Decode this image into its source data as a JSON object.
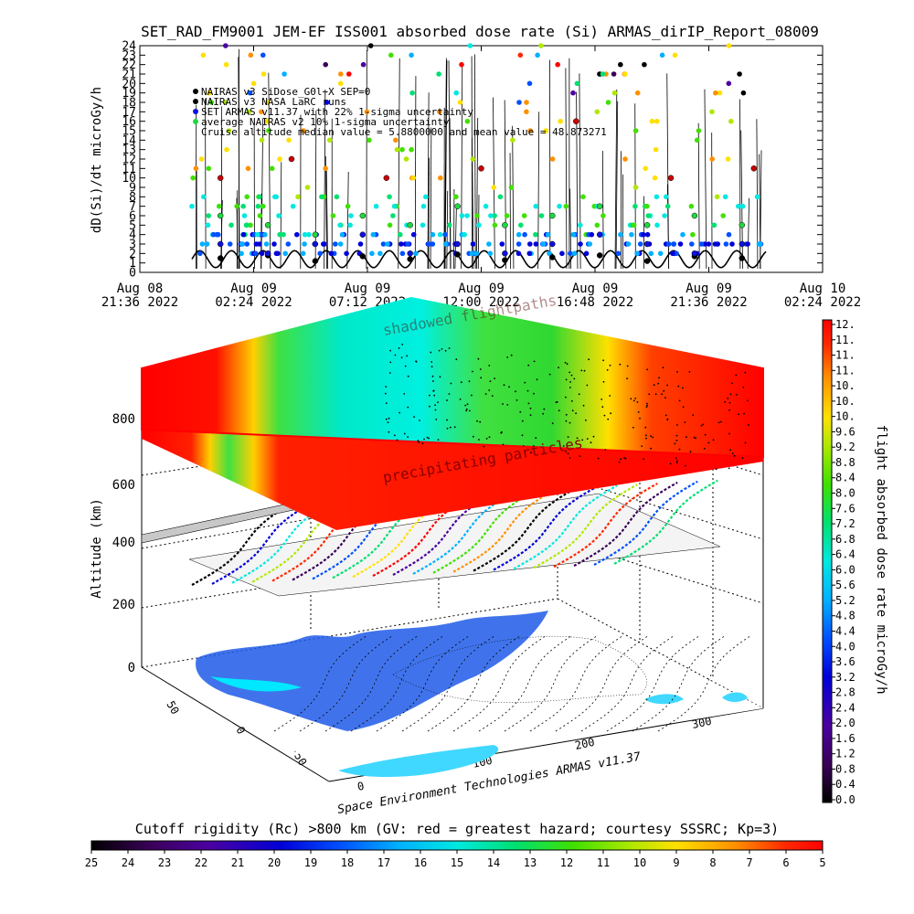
{
  "title": "SET_RAD_FM9001  JEM-EF ISS001 absorbed dose rate (Si) ARMAS_dirIP_Report_08009",
  "top_panel": {
    "ylabel": "dD(Si)/dt microGy/h",
    "ylim": [
      0,
      24
    ],
    "y_ticks": [
      "0",
      "1",
      "2",
      "3",
      "4",
      "5",
      "6",
      "7",
      "8",
      "9",
      "10",
      "11",
      "12",
      "13",
      "14",
      "15",
      "16",
      "17",
      "18",
      "19",
      "20",
      "21",
      "22",
      "23",
      "24"
    ],
    "x_ticks": [
      {
        "date": "Aug 08",
        "time": "21:36 2022"
      },
      {
        "date": "Aug 09",
        "time": "02:24 2022"
      },
      {
        "date": "Aug 09",
        "time": "07:12 2022"
      },
      {
        "date": "Aug 09",
        "time": "12:00 2022"
      },
      {
        "date": "Aug 09",
        "time": "16:48 2022"
      },
      {
        "date": "Aug 09",
        "time": "21:36 2022"
      },
      {
        "date": "Aug 10",
        "time": "02:24 2022"
      }
    ],
    "legend": [
      "NAIRAS v3 SiDose_G0l+X SEP=0",
      "NAIRAS v3 NASA LaRC runs",
      "SET ARMAS v11.37 with 22% 1-sigma uncertainty",
      "average NAIRAS v2 10% 1-sigma uncertainty",
      "Cruise altitude median value = 5.8800000 and mean value = 48.873271"
    ]
  },
  "scene3d": {
    "ylabel": "Altitude (km)",
    "alt_ticks": [
      "0",
      "200",
      "400",
      "600",
      "800"
    ],
    "lat_ticks": [
      "50",
      "0",
      "-50"
    ],
    "lon_ticks": [
      "0",
      "100",
      "200",
      "300"
    ],
    "top_layer_label": "shadowed flightpaths",
    "mid_layer_label": "precipitating particles",
    "credit": "Space Environment Technologies ARMAS v11.37"
  },
  "right_colorbar": {
    "label": "flight absorbed dose rate microGy/h",
    "ticks": [
      "12.",
      "11.",
      "11.",
      "11.",
      "10.",
      "10.",
      "10.",
      "9.6",
      "9.2",
      "8.8",
      "8.4",
      "8.0",
      "7.6",
      "7.2",
      "6.8",
      "6.4",
      "6.0",
      "5.6",
      "5.2",
      "4.8",
      "4.4",
      "4.0",
      "3.6",
      "3.2",
      "2.8",
      "2.4",
      "2.0",
      "1.6",
      "1.2",
      "0.8",
      "0.4",
      "0.0"
    ]
  },
  "bottom_colorbar": {
    "title": "Cutoff rigidity (Rc) >800 km (GV: red = greatest hazard; courtesy SSSRC; Kp=3)",
    "ticks": [
      "25",
      "24",
      "23",
      "22",
      "21",
      "20",
      "19",
      "18",
      "17",
      "16",
      "15",
      "14",
      "13",
      "12",
      "11",
      "10",
      "9",
      "8",
      "7",
      "6",
      "5"
    ]
  },
  "colors": {
    "rainbow": [
      "#000000",
      "#3a0058",
      "#4b00a0",
      "#0000d8",
      "#0050ff",
      "#00b0ff",
      "#00e8e0",
      "#00e070",
      "#40e000",
      "#b0e800",
      "#ffe000",
      "#ff9000",
      "#ff2800",
      "#ff0000"
    ],
    "series_black": "#000000",
    "series_blue": "#1010e0",
    "series_green": "#20d840",
    "series_cyan": "#00d8d0"
  },
  "chart_data": {
    "type": "scatter",
    "title": "SET_RAD_FM9001  JEM-EF ISS001 absorbed dose rate (Si) ARMAS_dirIP_Report_08009",
    "xlabel": "",
    "ylabel": "dD(Si)/dt microGy/h",
    "xlim": [
      "2022-08-08 21:36",
      "2022-08-10 02:24"
    ],
    "ylim": [
      0,
      24
    ],
    "grid": false,
    "legend_position": "top-left",
    "series": [
      {
        "name": "NAIRAS v3 SiDose_G0l+X SEP=0",
        "color": "#000000",
        "x": [
          "2022-08-09 01:00",
          "2022-08-09 03:00",
          "2022-08-09 05:00",
          "2022-08-09 07:00",
          "2022-08-09 09:00",
          "2022-08-09 11:00",
          "2022-08-09 13:00",
          "2022-08-09 15:00",
          "2022-08-09 17:00",
          "2022-08-09 19:00",
          "2022-08-09 21:00",
          "2022-08-09 23:00"
        ],
        "y": [
          1.5,
          1.8,
          1.2,
          1.7,
          1.4,
          1.9,
          1.3,
          1.6,
          1.8,
          1.2,
          1.7,
          1.5
        ]
      },
      {
        "name": "SET ARMAS v11.37 with 22% 1-sigma uncertainty",
        "color": "#1010e0",
        "x": [
          "2022-08-09 01:00",
          "2022-08-09 03:00",
          "2022-08-09 05:00",
          "2022-08-09 07:00",
          "2022-08-09 09:00",
          "2022-08-09 11:00",
          "2022-08-09 13:00",
          "2022-08-09 15:00",
          "2022-08-09 17:00",
          "2022-08-09 19:00",
          "2022-08-09 21:00",
          "2022-08-09 23:00"
        ],
        "y": [
          3,
          2,
          3,
          4,
          2,
          3,
          2,
          3,
          4,
          3,
          2,
          3
        ]
      },
      {
        "name": "average NAIRAS v2 10% 1-sigma uncertainty",
        "color": "#20d840",
        "x": [
          "2022-08-09 01:00",
          "2022-08-09 03:00",
          "2022-08-09 05:00",
          "2022-08-09 07:00",
          "2022-08-09 09:00",
          "2022-08-09 11:00",
          "2022-08-09 13:00",
          "2022-08-09 15:00",
          "2022-08-09 17:00",
          "2022-08-09 19:00",
          "2022-08-09 21:00",
          "2022-08-09 23:00"
        ],
        "y": [
          6,
          5,
          4,
          6,
          5,
          7,
          5,
          6,
          7,
          5,
          6,
          5
        ]
      },
      {
        "name": "NAIRAS v3 NASA LaRC runs",
        "color": "#cc0000",
        "x": [
          "2022-08-09 01:00",
          "2022-08-09 04:00",
          "2022-08-09 08:00",
          "2022-08-09 12:00",
          "2022-08-09 16:00",
          "2022-08-09 20:00",
          "2022-08-09 23:30"
        ],
        "y": [
          10,
          12,
          10,
          11,
          16,
          10,
          11
        ]
      }
    ]
  }
}
